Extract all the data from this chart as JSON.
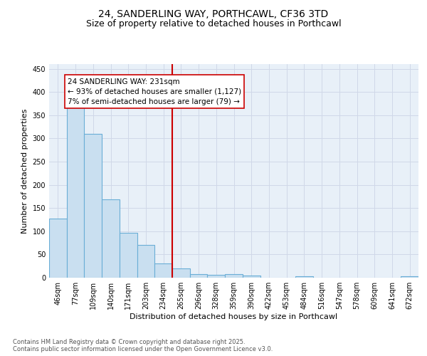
{
  "title_line1": "24, SANDERLING WAY, PORTHCAWL, CF36 3TD",
  "title_line2": "Size of property relative to detached houses in Porthcawl",
  "xlabel": "Distribution of detached houses by size in Porthcawl",
  "ylabel": "Number of detached properties",
  "categories": [
    "46sqm",
    "77sqm",
    "109sqm",
    "140sqm",
    "171sqm",
    "203sqm",
    "234sqm",
    "265sqm",
    "296sqm",
    "328sqm",
    "359sqm",
    "390sqm",
    "422sqm",
    "453sqm",
    "484sqm",
    "516sqm",
    "547sqm",
    "578sqm",
    "609sqm",
    "641sqm",
    "672sqm"
  ],
  "values": [
    128,
    373,
    310,
    168,
    96,
    70,
    30,
    20,
    8,
    6,
    8,
    4,
    0,
    0,
    3,
    0,
    0,
    0,
    0,
    0,
    3
  ],
  "bar_color": "#c9dff0",
  "bar_edge_color": "#6aaed6",
  "grid_color": "#d0d8e8",
  "background_color": "#e8f0f8",
  "vline_x": 6.5,
  "vline_color": "#cc0000",
  "box_edge_color": "#cc0000",
  "annotation_box_text_line1": "24 SANDERLING WAY: 231sqm",
  "annotation_box_text_line2": "← 93% of detached houses are smaller (1,127)",
  "annotation_box_text_line3": "7% of semi-detached houses are larger (79) →",
  "ylim": [
    0,
    460
  ],
  "yticks": [
    0,
    50,
    100,
    150,
    200,
    250,
    300,
    350,
    400,
    450
  ],
  "footnote": "Contains HM Land Registry data © Crown copyright and database right 2025.\nContains public sector information licensed under the Open Government Licence v3.0.",
  "title_fontsize": 10,
  "subtitle_fontsize": 9,
  "tick_fontsize": 7,
  "label_fontsize": 8,
  "annot_fontsize": 7.5,
  "footnote_fontsize": 6
}
